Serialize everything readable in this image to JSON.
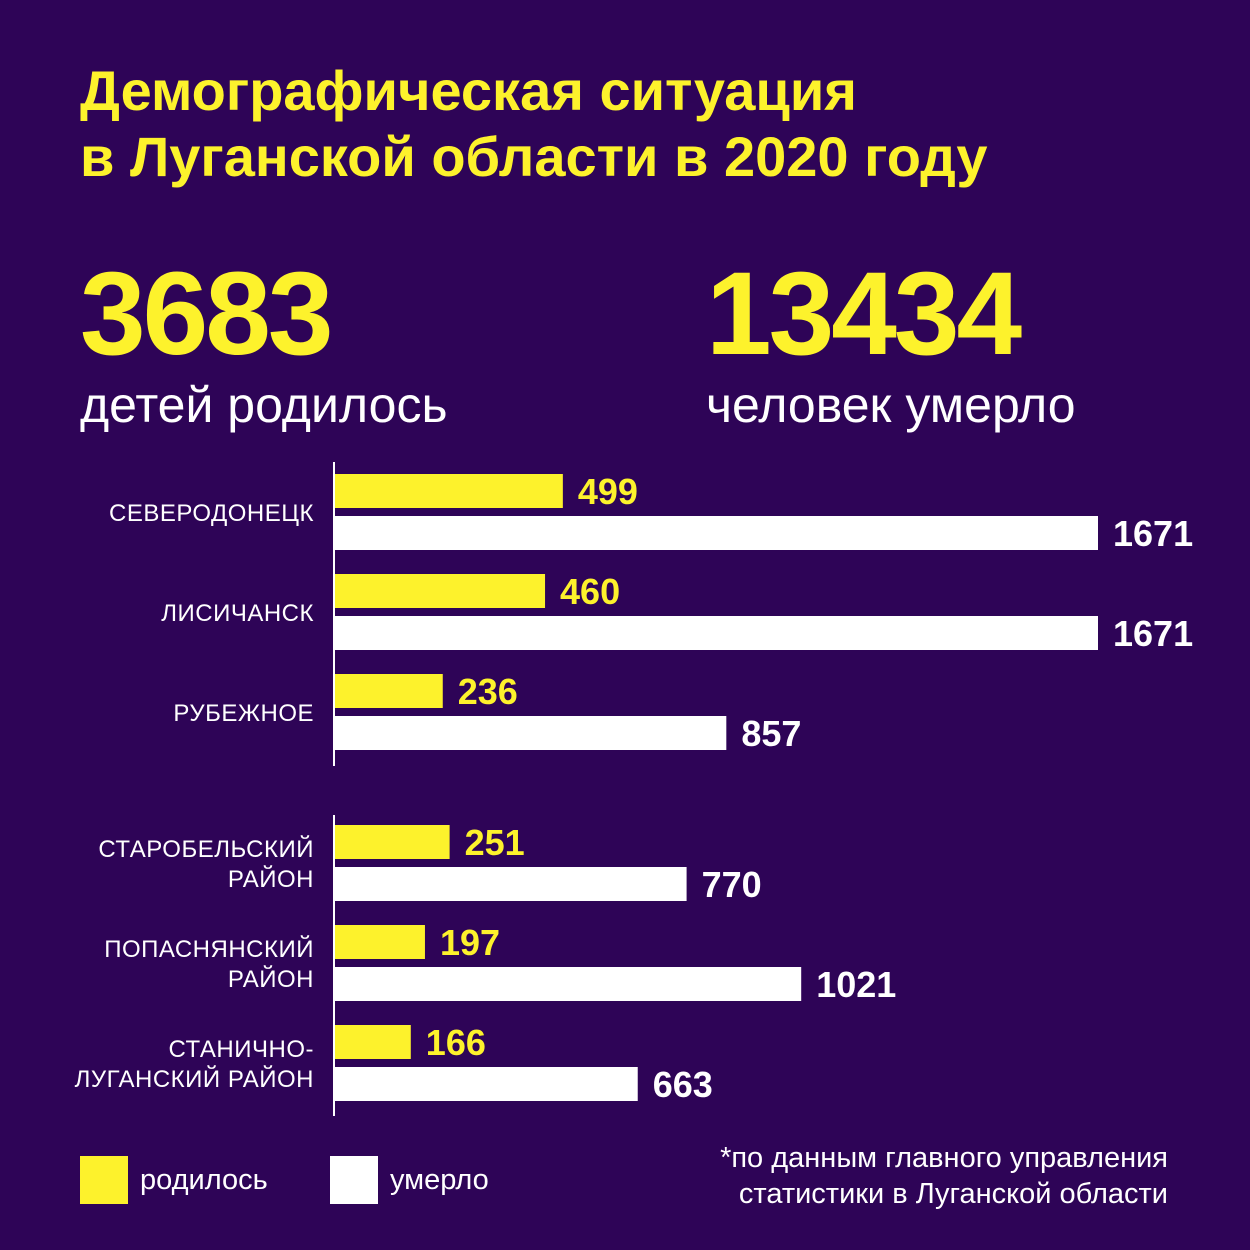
{
  "title": {
    "line1": "Демографическая ситуация",
    "line2": "в Луганской области в 2020 году"
  },
  "stats": {
    "born": {
      "value": "3683",
      "label": "детей родилось"
    },
    "died": {
      "value": "13434",
      "label": "человек умерло"
    }
  },
  "colors": {
    "background": "#2e0457",
    "accent": "#fdf22c",
    "born": "#fdf22c",
    "died": "#ffffff"
  },
  "legend": {
    "born": "родилось",
    "died": "умерло"
  },
  "footnote": {
    "line1": "*по данным главного управления",
    "line2": "статистики в Луганской области"
  },
  "chart_data": {
    "type": "bar",
    "orientation": "horizontal",
    "groups": [
      [
        {
          "category": [
            "СЕВЕРОДОНЕЦК"
          ],
          "born": 499,
          "died": 1671
        },
        {
          "category": [
            "ЛИСИЧАНСК"
          ],
          "born": 460,
          "died": 1671
        },
        {
          "category": [
            "РУБЕЖНОЕ"
          ],
          "born": 236,
          "died": 857
        }
      ],
      [
        {
          "category": [
            "СТАРОБЕЛЬСКИЙ",
            "РАЙОН"
          ],
          "born": 251,
          "died": 770
        },
        {
          "category": [
            "ПОПАСНЯНСКИЙ",
            "РАЙОН"
          ],
          "born": 197,
          "died": 1021
        },
        {
          "category": [
            "СТАНИЧНО-",
            "ЛУГАНСКИЙ РАЙОН"
          ],
          "born": 166,
          "died": 663
        }
      ]
    ],
    "series": [
      {
        "key": "born",
        "name": "родилось"
      },
      {
        "key": "died",
        "name": "умерло"
      }
    ],
    "data_labels": true,
    "legend_position": "bottom-left"
  }
}
